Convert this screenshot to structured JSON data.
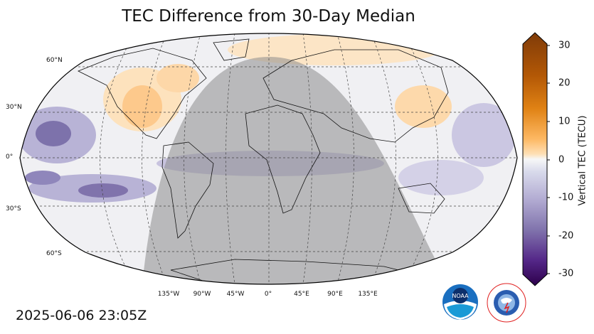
{
  "title": "TEC Difference from 30-Day Median",
  "timestamp": "2025-06-06 23:05Z",
  "lat_labels": [
    "60°N",
    "30°N",
    "0°",
    "30°S",
    "60°S"
  ],
  "lon_labels": [
    "135°W",
    "90°W",
    "45°W",
    "0°",
    "45°E",
    "90°E",
    "135°E"
  ],
  "colorbar": {
    "label": "Vertical TEC (TECU)",
    "ticks": [
      "30",
      "20",
      "10",
      "0",
      "-10",
      "-20",
      "-30"
    ],
    "range": [
      -30,
      30
    ],
    "colors": {
      "positive": "#7f3b08",
      "mid_positive": "#e08214",
      "neutral": "#f7f7f7",
      "mid_negative": "#8073ac",
      "negative": "#2d004b"
    }
  },
  "map": {
    "projection": "robinson",
    "night_shading": true,
    "ocean_color": "#f2f2f4"
  },
  "logos": {
    "noaa": "NOAA",
    "nws": "NATIONAL WEATHER SERVICE"
  }
}
